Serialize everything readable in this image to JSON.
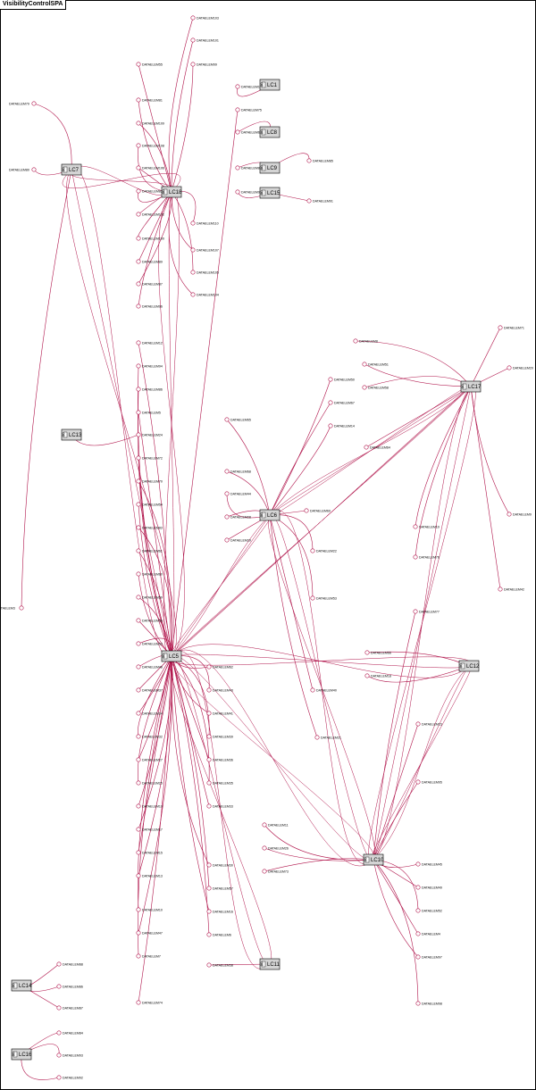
{
  "frame": {
    "title": "VisibilityControlSPA"
  },
  "colors": {
    "line": "#b0134a",
    "component_fill": "#d4d4d4",
    "component_stroke": "#000000",
    "background": "#ffffff"
  },
  "components": [
    {
      "id": "LC1",
      "label": "LC1"
    },
    {
      "id": "LC5",
      "label": "LC5"
    },
    {
      "id": "LC6",
      "label": "LC6"
    },
    {
      "id": "LC7",
      "label": "LC7"
    },
    {
      "id": "LC8",
      "label": "LC8"
    },
    {
      "id": "LC9",
      "label": "LC9"
    },
    {
      "id": "LC10",
      "label": "LC10"
    },
    {
      "id": "LC11",
      "label": "LC11"
    },
    {
      "id": "LC12",
      "label": "LC12"
    },
    {
      "id": "LC13",
      "label": "LC13"
    },
    {
      "id": "LC14",
      "label": "LC14"
    },
    {
      "id": "LC15",
      "label": "LC15"
    },
    {
      "id": "LC16",
      "label": "LC16"
    },
    {
      "id": "LC17",
      "label": "LC17"
    },
    {
      "id": "LC18",
      "label": "LC18"
    }
  ],
  "data_elements": [
    {
      "id": "e103",
      "label": "DATAELEM103",
      "to": "LC18"
    },
    {
      "id": "e101",
      "label": "DATAELEM101",
      "to": "LC18"
    },
    {
      "id": "e55",
      "label": "DATAELEM55",
      "to": "LC18"
    },
    {
      "id": "e99",
      "label": "DATAELEM99",
      "to": "LC18"
    },
    {
      "id": "e79",
      "label": "DATAELEM79",
      "to": "LC7"
    },
    {
      "id": "e1",
      "label": "DATAELEM1",
      "to": "LC1"
    },
    {
      "id": "e81",
      "label": "DATAELEM81",
      "to": "LC18"
    },
    {
      "id": "e75",
      "label": "DATAELEM75",
      "to": "LC5"
    },
    {
      "id": "e109",
      "label": "DATAELEM109",
      "to": "LC18"
    },
    {
      "id": "e63",
      "label": "DATAELEM63",
      "to": "LC8"
    },
    {
      "id": "e108",
      "label": "DATAELEM108",
      "to": "LC18"
    },
    {
      "id": "e80",
      "label": "DATAELEM80",
      "to": "LC7"
    },
    {
      "id": "e106",
      "label": "DATAELEM106",
      "to": "LC18"
    },
    {
      "id": "e84",
      "label": "DATAELEM84",
      "to": "LC9"
    },
    {
      "id": "e85",
      "label": "DATAELEM85",
      "to": "LC9"
    },
    {
      "id": "e82",
      "label": "DATAELEM82",
      "to": "LC18"
    },
    {
      "id": "e90",
      "label": "DATAELEM90",
      "to": "LC15"
    },
    {
      "id": "e91",
      "label": "DATAELEM91",
      "to": "LC15"
    },
    {
      "id": "e102",
      "label": "DATAELEM102",
      "to": "LC18"
    },
    {
      "id": "e110",
      "label": "DATAELEM110",
      "to": "LC18"
    },
    {
      "id": "e100",
      "label": "DATAELEM100",
      "to": "LC18"
    },
    {
      "id": "e107",
      "label": "DATAELEM107",
      "to": "LC18"
    },
    {
      "id": "e89",
      "label": "DATAELEM89",
      "to": "LC18"
    },
    {
      "id": "e105",
      "label": "DATAELEM105",
      "to": "LC18"
    },
    {
      "id": "e87",
      "label": "DATAELEM87",
      "to": "LC18"
    },
    {
      "id": "e104",
      "label": "DATAELEM104",
      "to": "LC18"
    },
    {
      "id": "e96",
      "label": "DATAELEM96",
      "to": "LC18"
    },
    {
      "id": "e71",
      "label": "DATAELEM71",
      "to": "LC17"
    },
    {
      "id": "e12",
      "label": "DATAELEM12",
      "to": "LC5"
    },
    {
      "id": "e8",
      "label": "DATAELEM8",
      "to": "LC17"
    },
    {
      "id": "e94",
      "label": "DATAELEM94",
      "to": "LC5"
    },
    {
      "id": "e51",
      "label": "DATAELEM51",
      "to": "LC17"
    },
    {
      "id": "e20",
      "label": "DATAELEM20",
      "to": "LC17"
    },
    {
      "id": "e50",
      "label": "DATAELEM50",
      "to": "LC6"
    },
    {
      "id": "e58",
      "label": "DATAELEM58",
      "to": "LC17"
    },
    {
      "id": "e86",
      "label": "DATAELEM86",
      "to": "LC5"
    },
    {
      "id": "e67",
      "label": "DATAELEM67",
      "to": "LC6"
    },
    {
      "id": "e5",
      "label": "DATAELEM5",
      "to": "LC5"
    },
    {
      "id": "e65",
      "label": "DATAELEM65",
      "to": "LC6"
    },
    {
      "id": "e14",
      "label": "DATAELEM14",
      "to": "LC6"
    },
    {
      "id": "e24",
      "label": "DATAELEM24",
      "to": "LC13"
    },
    {
      "id": "e72",
      "label": "DATAELEM72",
      "to": "LC5"
    },
    {
      "id": "e64",
      "label": "DATAELEM64",
      "to": "LC17"
    },
    {
      "id": "e68",
      "label": "DATAELEM68",
      "to": "LC6"
    },
    {
      "id": "e70",
      "label": "DATAELEM70",
      "to": "LC5"
    },
    {
      "id": "e44",
      "label": "DATAELEM44",
      "to": "LC6"
    },
    {
      "id": "e54",
      "label": "DATAELEM54",
      "to": "LC5"
    },
    {
      "id": "e69",
      "label": "DATAELEM69",
      "to": "LC6"
    },
    {
      "id": "e28",
      "label": "DATAELEM28",
      "to": "LC6"
    },
    {
      "id": "e83",
      "label": "DATAELEM83",
      "to": "LC5"
    },
    {
      "id": "e19",
      "label": "DATAELEM19",
      "to": "LC17"
    },
    {
      "id": "e9",
      "label": "DATAELEM9",
      "to": "LC17"
    },
    {
      "id": "e29",
      "label": "DATAELEM29",
      "to": "LC6"
    },
    {
      "id": "e61",
      "label": "DATAELEM61",
      "to": "LC5"
    },
    {
      "id": "e22",
      "label": "DATAELEM22",
      "to": "LC6"
    },
    {
      "id": "e76",
      "label": "DATAELEM76",
      "to": "LC17"
    },
    {
      "id": "e60",
      "label": "DATAELEM60",
      "to": "LC5"
    },
    {
      "id": "e42",
      "label": "DATAELEM42",
      "to": "LC17"
    },
    {
      "id": "e59",
      "label": "DATAELEM59",
      "to": "LC5"
    },
    {
      "id": "e53",
      "label": "DATAELEM53",
      "to": "LC6"
    },
    {
      "id": "e3",
      "label": "DATAELEM3",
      "to": "LC7"
    },
    {
      "id": "e77",
      "label": "DATAELEM77",
      "to": "LC10"
    },
    {
      "id": "e56",
      "label": "DATAELEM56",
      "to": "LC5"
    },
    {
      "id": "e66",
      "label": "DATAELEM66",
      "to": "LC12"
    },
    {
      "id": "e53b",
      "label": "DATAELEM53",
      "to": "LC5"
    },
    {
      "id": "e18",
      "label": "DATAELEM18",
      "to": "LC12"
    },
    {
      "id": "e62",
      "label": "DATAELEM62",
      "to": "LC5"
    },
    {
      "id": "e40",
      "label": "DATAELEM40",
      "to": "LC6"
    },
    {
      "id": "e48",
      "label": "DATAELEM48",
      "to": "LC5"
    },
    {
      "id": "e43",
      "label": "DATAELEM43",
      "to": "LC5"
    },
    {
      "id": "e37",
      "label": "DATAELEM37",
      "to": "LC5"
    },
    {
      "id": "e41",
      "label": "DATAELEM41",
      "to": "LC5"
    },
    {
      "id": "e23",
      "label": "DATAELEM23",
      "to": "LC10"
    },
    {
      "id": "e34",
      "label": "DATAELEM34",
      "to": "LC5"
    },
    {
      "id": "e39",
      "label": "DATAELEM39",
      "to": "LC5"
    },
    {
      "id": "e32",
      "label": "DATAELEM32",
      "to": "LC5"
    },
    {
      "id": "e21",
      "label": "DATAELEM21",
      "to": "LC6"
    },
    {
      "id": "e36",
      "label": "DATAELEM36",
      "to": "LC5"
    },
    {
      "id": "e27",
      "label": "DATAELEM27",
      "to": "LC5"
    },
    {
      "id": "e35",
      "label": "DATAELEM35",
      "to": "LC5"
    },
    {
      "id": "e25",
      "label": "DATAELEM25",
      "to": "LC5"
    },
    {
      "id": "e95",
      "label": "DATAELEM95",
      "to": "LC10"
    },
    {
      "id": "e33",
      "label": "DATAELEM33",
      "to": "LC5"
    },
    {
      "id": "e19b",
      "label": "DATAELEM19",
      "to": "LC5"
    },
    {
      "id": "e17",
      "label": "DATAELEM17",
      "to": "LC5"
    },
    {
      "id": "e11",
      "label": "DATAELEM11",
      "to": "LC10"
    },
    {
      "id": "e26",
      "label": "DATAELEM26",
      "to": "LC10"
    },
    {
      "id": "e15",
      "label": "DATAELEM15",
      "to": "LC5"
    },
    {
      "id": "e73",
      "label": "DATAELEM73",
      "to": "LC10"
    },
    {
      "id": "e13",
      "label": "DATAELEM13",
      "to": "LC5"
    },
    {
      "id": "e30",
      "label": "DATAELEM30",
      "to": "LC5"
    },
    {
      "id": "e45",
      "label": "DATAELEM45",
      "to": "LC10"
    },
    {
      "id": "e49",
      "label": "DATAELEM49",
      "to": "LC10"
    },
    {
      "id": "e57",
      "label": "DATAELEM57",
      "to": "LC5"
    },
    {
      "id": "e52",
      "label": "DATAELEM52",
      "to": "LC10"
    },
    {
      "id": "e10",
      "label": "DATAELEM10",
      "to": "LC5"
    },
    {
      "id": "e16",
      "label": "DATAELEM16",
      "to": "LC5"
    },
    {
      "id": "e4",
      "label": "DATAELEM4",
      "to": "LC10"
    },
    {
      "id": "e6",
      "label": "DATAELEM6",
      "to": "LC5"
    },
    {
      "id": "e47",
      "label": "DATAELEM47",
      "to": "LC5"
    },
    {
      "id": "e7",
      "label": "DATAELEM7",
      "to": "LC5"
    },
    {
      "id": "e97",
      "label": "DATAELEM97",
      "to": "LC10"
    },
    {
      "id": "e38",
      "label": "DATAELEM38",
      "to": "LC11"
    },
    {
      "id": "e74",
      "label": "DATAELEM74",
      "to": "LC5"
    },
    {
      "id": "e98",
      "label": "DATAELEM98",
      "to": "LC10"
    },
    {
      "id": "e88",
      "label": "DATAELEM88",
      "to": "LC14"
    },
    {
      "id": "e86b",
      "label": "DATAELEM86",
      "to": "LC14"
    },
    {
      "id": "e87b",
      "label": "DATAELEM87",
      "to": "LC14"
    },
    {
      "id": "e84b",
      "label": "DATAELEM84",
      "to": "LC16"
    },
    {
      "id": "e93",
      "label": "DATAELEM93",
      "to": "LC16"
    },
    {
      "id": "e92",
      "label": "DATAELEM92",
      "to": "LC16"
    }
  ]
}
